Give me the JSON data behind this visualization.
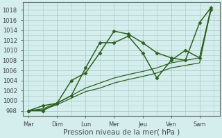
{
  "x_labels": [
    "Mar",
    "Dim",
    "Lun",
    "Mer",
    "Jeu",
    "Ven",
    "Sam"
  ],
  "x_tick_positions": [
    0,
    1,
    2,
    3,
    4,
    5,
    6
  ],
  "series": [
    {
      "name": "line_upper1",
      "x": [
        0,
        0.5,
        1.0,
        1.5,
        2.0,
        2.5,
        3.0,
        3.5,
        4.0,
        4.5,
        5.0,
        5.5,
        6.0,
        6.4
      ],
      "y": [
        998.0,
        998.0,
        999.5,
        1004.0,
        1005.5,
        1009.5,
        1013.8,
        1013.2,
        1011.5,
        1009.5,
        1008.5,
        1008.0,
        1015.5,
        1018.5
      ],
      "color": "#2d6020",
      "linewidth": 1.1,
      "marker": "D",
      "markersize": 2.5
    },
    {
      "name": "line_upper2",
      "x": [
        0,
        0.5,
        1.0,
        1.5,
        2.0,
        2.5,
        3.0,
        3.5,
        4.0,
        4.5,
        5.0,
        5.5,
        6.0,
        6.4
      ],
      "y": [
        998.0,
        999.0,
        999.5,
        1001.0,
        1006.5,
        1011.5,
        1011.5,
        1012.8,
        1009.5,
        1004.5,
        1008.0,
        1010.0,
        1008.5,
        1018.0
      ],
      "color": "#2d6020",
      "linewidth": 1.1,
      "marker": "D",
      "markersize": 2.5
    },
    {
      "name": "line_lower1",
      "x": [
        0,
        0.5,
        1.0,
        1.5,
        2.0,
        2.5,
        3.0,
        3.5,
        4.0,
        4.5,
        5.0,
        5.5,
        6.0,
        6.4
      ],
      "y": [
        998.0,
        998.2,
        999.2,
        1000.5,
        1001.8,
        1002.5,
        1003.5,
        1004.2,
        1004.8,
        1005.5,
        1006.5,
        1007.0,
        1007.5,
        1018.5
      ],
      "color": "#2d6020",
      "linewidth": 0.9,
      "marker": "D",
      "markersize": 2.0
    },
    {
      "name": "line_lower2",
      "x": [
        0,
        0.5,
        1.0,
        1.5,
        2.0,
        2.5,
        3.0,
        3.5,
        4.0,
        4.5,
        5.0,
        5.5,
        6.0,
        6.4
      ],
      "y": [
        998.0,
        998.4,
        999.5,
        1001.0,
        1002.5,
        1003.5,
        1004.5,
        1005.2,
        1005.8,
        1006.5,
        1007.5,
        1008.0,
        1008.5,
        1018.5
      ],
      "color": "#2d6020",
      "linewidth": 0.9,
      "marker": "D",
      "markersize": 2.0
    }
  ],
  "ylim": [
    997.0,
    1019.5
  ],
  "yticks": [
    998,
    1000,
    1002,
    1004,
    1006,
    1008,
    1010,
    1012,
    1014,
    1016,
    1018
  ],
  "xlim": [
    -0.2,
    6.7
  ],
  "xlabel": "Pression niveau de la mer( hPa )",
  "bg_color": "#d4eeed",
  "grid_color": "#b0c8c8",
  "text_color": "#444444",
  "axes_color": "#666666",
  "tick_fontsize": 6.0,
  "xlabel_fontsize": 7.5
}
